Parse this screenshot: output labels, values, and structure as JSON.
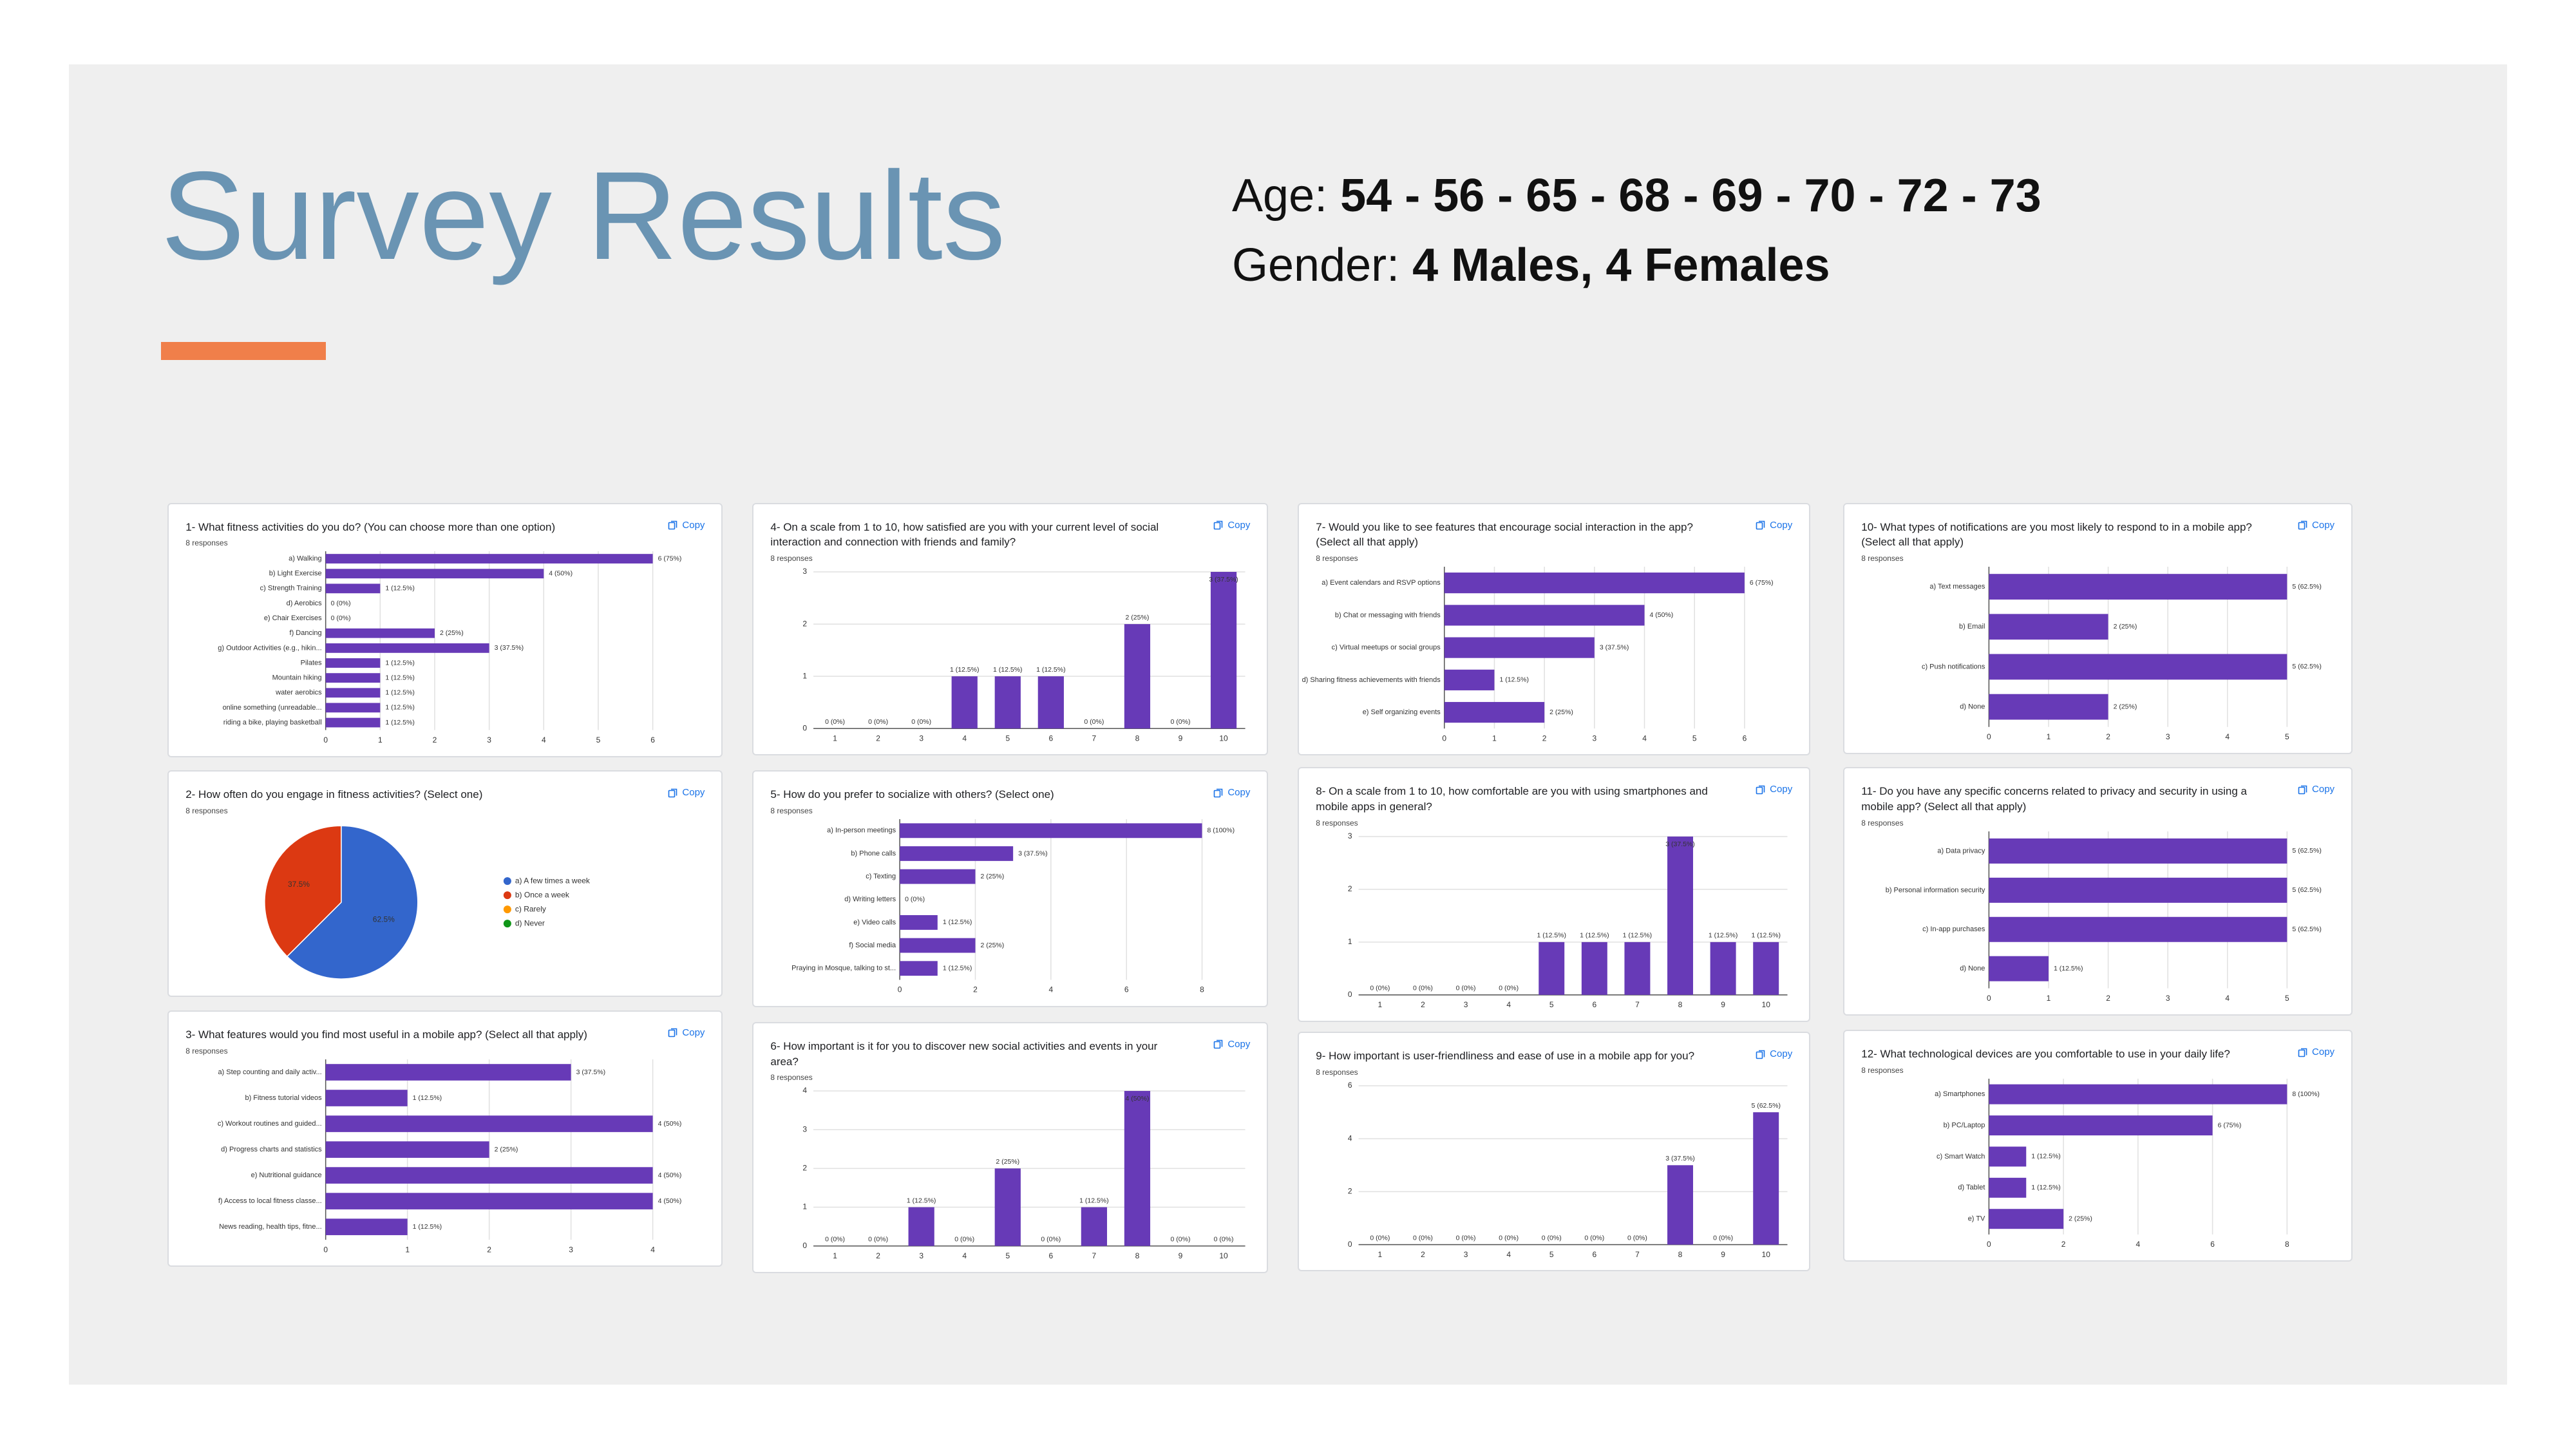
{
  "header": {
    "title": "Survey Results",
    "age_label": "Age:",
    "age_value": "54 - 56 - 65 - 68 - 69 - 70 - 72 - 73",
    "gender_label": "Gender:",
    "gender_value": "4 Males, 4 Females"
  },
  "copy_button": "Copy",
  "chart_data": [
    {
      "type": "bar",
      "orientation": "horizontal",
      "title": "1- What fitness activities do you do? (You can choose more than one option)",
      "subtitle": "8 responses",
      "color": "#673ab7",
      "grid": true,
      "categories": [
        "a) Walking",
        "b) Light Exercise",
        "c) Strength Training",
        "d) Aerobics",
        "e) Chair Exercises",
        "f) Dancing",
        "g) Outdoor Activities (e.g., hikin...",
        "Pilates",
        "Mountain hiking",
        "water aerobics",
        "online something (unreadable...",
        "riding a bike, playing basketball"
      ],
      "values": [
        6,
        4,
        1,
        0,
        0,
        2,
        3,
        1,
        1,
        1,
        1,
        1
      ],
      "value_labels": [
        "6 (75%)",
        "4 (50%)",
        "1 (12.5%)",
        "0 (0%)",
        "0 (0%)",
        "2 (25%)",
        "3 (37.5%)",
        "1 (12.5%)",
        "1 (12.5%)",
        "1 (12.5%)",
        "1 (12.5%)",
        "1 (12.5%)"
      ],
      "xlim": [
        0,
        6
      ],
      "xticks": [
        0,
        1,
        2,
        3,
        4,
        5,
        6
      ]
    },
    {
      "type": "pie",
      "title": "2- How often do you engage in fitness activities? (Select one)",
      "subtitle": "8 responses",
      "categories": [
        "a) A few times a week",
        "b) Once a week",
        "c) Rarely",
        "d) Never"
      ],
      "colors": [
        "#3366cc",
        "#dc3912",
        "#ff9900",
        "#109618"
      ],
      "values": [
        62.5,
        37.5,
        0,
        0
      ],
      "value_labels": [
        "62.5%",
        "37.5%",
        null,
        null
      ]
    },
    {
      "type": "bar",
      "orientation": "horizontal",
      "title": "3- What features would you find most useful in a mobile app? (Select all that apply)",
      "subtitle": "8 responses",
      "color": "#673ab7",
      "grid": true,
      "categories": [
        "a) Step counting and daily activ...",
        "b) Fitness tutorial videos",
        "c) Workout routines and guided...",
        "d) Progress charts and statistics",
        "e) Nutritional guidance",
        "f) Access to local fitness classe...",
        "News reading, health tips, fitne..."
      ],
      "values": [
        3,
        1,
        4,
        2,
        4,
        4,
        1
      ],
      "value_labels": [
        "3 (37.5%)",
        "1 (12.5%)",
        "4 (50%)",
        "2 (25%)",
        "4 (50%)",
        "4 (50%)",
        "1 (12.5%)"
      ],
      "xlim": [
        0,
        4
      ],
      "xticks": [
        0,
        1,
        2,
        3,
        4
      ]
    },
    {
      "type": "bar",
      "orientation": "vertical",
      "title": "4- On a scale from 1 to 10, how satisfied are you with your current level of social interaction and connection with friends and family?",
      "subtitle": "8 responses",
      "color": "#673ab7",
      "grid": true,
      "categories": [
        "1",
        "2",
        "3",
        "4",
        "5",
        "6",
        "7",
        "8",
        "9",
        "10"
      ],
      "values": [
        0,
        0,
        0,
        1,
        1,
        1,
        0,
        2,
        0,
        3
      ],
      "value_labels": [
        "0 (0%)",
        "0 (0%)",
        "0 (0%)",
        "1 (12.5%)",
        "1 (12.5%)",
        "1 (12.5%)",
        "0 (0%)",
        "2 (25%)",
        "0 (0%)",
        "3 (37.5%)"
      ],
      "ylim": [
        0,
        3
      ],
      "yticks": [
        0,
        1,
        2,
        3
      ]
    },
    {
      "type": "bar",
      "orientation": "horizontal",
      "title": "5- How do you prefer to socialize with others? (Select one)",
      "subtitle": "8 responses",
      "color": "#673ab7",
      "grid": true,
      "categories": [
        "a) In-person meetings",
        "b) Phone calls",
        "c) Texting",
        "d) Writing letters",
        "e) Video calls",
        "f) Social media",
        "Praying in Mosque, talking to st..."
      ],
      "values": [
        8,
        3,
        2,
        0,
        1,
        2,
        1
      ],
      "value_labels": [
        "8 (100%)",
        "3 (37.5%)",
        "2 (25%)",
        "0 (0%)",
        "1 (12.5%)",
        "2 (25%)",
        "1 (12.5%)"
      ],
      "xlim": [
        0,
        8
      ],
      "xticks": [
        0,
        2,
        4,
        6,
        8
      ]
    },
    {
      "type": "bar",
      "orientation": "vertical",
      "title": "6- How important is it for you to discover new social activities and events in your area?",
      "subtitle": "8 responses",
      "color": "#673ab7",
      "grid": true,
      "categories": [
        "1",
        "2",
        "3",
        "4",
        "5",
        "6",
        "7",
        "8",
        "9",
        "10"
      ],
      "values": [
        0,
        0,
        1,
        0,
        2,
        0,
        1,
        4,
        0,
        0
      ],
      "value_labels": [
        "0 (0%)",
        "0 (0%)",
        "1 (12.5%)",
        "0 (0%)",
        "2 (25%)",
        "0 (0%)",
        "1 (12.5%)",
        "4 (50%)",
        "0 (0%)",
        "0 (0%)"
      ],
      "ylim": [
        0,
        4
      ],
      "yticks": [
        0,
        1,
        2,
        3,
        4
      ]
    },
    {
      "type": "bar",
      "orientation": "horizontal",
      "title": "7- Would you like to see features that encourage social interaction in the app? (Select all that apply)",
      "subtitle": "8 responses",
      "color": "#673ab7",
      "grid": true,
      "categories": [
        "a) Event calendars and RSVP options",
        "b) Chat or messaging with friends",
        "c) Virtual meetups or social groups",
        "d) Sharing fitness achievements with friends",
        "e) Self organizing events"
      ],
      "values": [
        6,
        4,
        3,
        1,
        2
      ],
      "value_labels": [
        "6 (75%)",
        "4 (50%)",
        "3 (37.5%)",
        "1 (12.5%)",
        "2 (25%)"
      ],
      "xlim": [
        0,
        6
      ],
      "xticks": [
        0,
        1,
        2,
        3,
        4,
        5,
        6
      ]
    },
    {
      "type": "bar",
      "orientation": "vertical",
      "title": "8- On a scale from 1 to 10, how comfortable are you with using smartphones and mobile apps in general?",
      "subtitle": "8 responses",
      "color": "#673ab7",
      "grid": true,
      "categories": [
        "1",
        "2",
        "3",
        "4",
        "5",
        "6",
        "7",
        "8",
        "9",
        "10"
      ],
      "values": [
        0,
        0,
        0,
        0,
        1,
        1,
        1,
        3,
        1,
        1
      ],
      "value_labels": [
        "0 (0%)",
        "0 (0%)",
        "0 (0%)",
        "0 (0%)",
        "1 (12.5%)",
        "1 (12.5%)",
        "1 (12.5%)",
        "3 (37.5%)",
        "1 (12.5%)",
        "1 (12.5%)"
      ],
      "ylim": [
        0,
        3
      ],
      "yticks": [
        0,
        1,
        2,
        3
      ]
    },
    {
      "type": "bar",
      "orientation": "vertical",
      "title": "9- How important is user-friendliness and ease of use in a mobile app for you?",
      "subtitle": "8 responses",
      "color": "#673ab7",
      "grid": true,
      "categories": [
        "1",
        "2",
        "3",
        "4",
        "5",
        "6",
        "7",
        "8",
        "9",
        "10"
      ],
      "values": [
        0,
        0,
        0,
        0,
        0,
        0,
        0,
        3,
        0,
        5
      ],
      "value_labels": [
        "0 (0%)",
        "0 (0%)",
        "0 (0%)",
        "0 (0%)",
        "0 (0%)",
        "0 (0%)",
        "0 (0%)",
        "3 (37.5%)",
        "0 (0%)",
        "5 (62.5%)"
      ],
      "ylim": [
        0,
        6
      ],
      "yticks": [
        0,
        2,
        4,
        6
      ]
    },
    {
      "type": "bar",
      "orientation": "horizontal",
      "title": "10- What types of notifications are you most likely to respond to in a mobile app? (Select all that apply)",
      "subtitle": "8 responses",
      "color": "#673ab7",
      "grid": true,
      "categories": [
        "a) Text messages",
        "b) Email",
        "c) Push notifications",
        "d) None"
      ],
      "values": [
        5,
        2,
        5,
        2
      ],
      "value_labels": [
        "5 (62.5%)",
        "2 (25%)",
        "5 (62.5%)",
        "2 (25%)"
      ],
      "xlim": [
        0,
        5
      ],
      "xticks": [
        0,
        1,
        2,
        3,
        4,
        5
      ]
    },
    {
      "type": "bar",
      "orientation": "horizontal",
      "title": "11- Do you have any specific concerns related to privacy and security in using a mobile app? (Select all that apply)",
      "subtitle": "8 responses",
      "color": "#673ab7",
      "grid": true,
      "categories": [
        "a) Data privacy",
        "b) Personal information security",
        "c) In-app purchases",
        "d) None"
      ],
      "values": [
        5,
        5,
        5,
        1
      ],
      "value_labels": [
        "5 (62.5%)",
        "5 (62.5%)",
        "5 (62.5%)",
        "1 (12.5%)"
      ],
      "xlim": [
        0,
        5
      ],
      "xticks": [
        0,
        1,
        2,
        3,
        4,
        5
      ]
    },
    {
      "type": "bar",
      "orientation": "horizontal",
      "title": "12- What technological devices are you comfortable to use in your daily life?",
      "subtitle": "8 responses",
      "color": "#673ab7",
      "grid": true,
      "categories": [
        "a) Smartphones",
        "b) PC/Laptop",
        "c) Smart Watch",
        "d) Tablet",
        "e) TV"
      ],
      "values": [
        8,
        6,
        1,
        1,
        2
      ],
      "value_labels": [
        "8 (100%)",
        "6 (75%)",
        "1 (12.5%)",
        "1 (12.5%)",
        "2 (25%)"
      ],
      "xlim": [
        0,
        8
      ],
      "xticks": [
        0,
        2,
        4,
        6,
        8
      ]
    }
  ]
}
